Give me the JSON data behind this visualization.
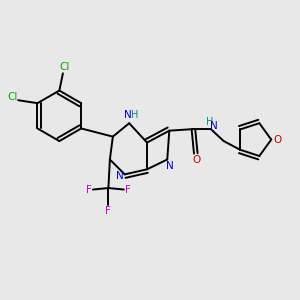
{
  "background_color": "#e8e8e8",
  "figsize": [
    3.0,
    3.0
  ],
  "dpi": 100,
  "colors": {
    "C": "black",
    "N": "#0000cc",
    "O": "#cc0000",
    "F": "#cc00cc",
    "Cl": "#00aa00",
    "H": "#008888",
    "bond": "black"
  },
  "bond_lw": 1.4,
  "dbl_off": 0.012
}
